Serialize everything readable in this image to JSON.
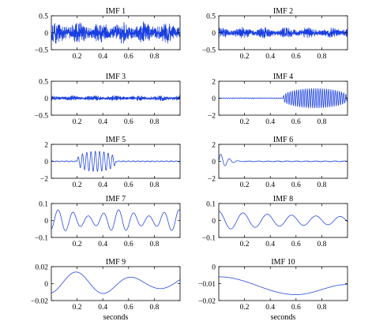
{
  "chart_data": [
    {
      "type": "line",
      "title": "IMF 1",
      "xlabel": "",
      "xlim": [
        0,
        1
      ],
      "ylim": [
        -0.5,
        0.5
      ],
      "yticks": [
        "0.5",
        "0",
        "−0.5"
      ],
      "xticks": [
        "0.2",
        "0.4",
        "0.6",
        "0.8"
      ],
      "series": [
        {
          "kind": "noise",
          "amplitude": 0.28,
          "frequency_hz": 190,
          "start": 0,
          "end": 1
        }
      ],
      "color": "#1a3fe0"
    },
    {
      "type": "line",
      "title": "IMF 2",
      "xlabel": "",
      "xlim": [
        0,
        1
      ],
      "ylim": [
        -0.5,
        0.5
      ],
      "yticks": [
        "0.5",
        "0",
        "−0.5"
      ],
      "xticks": [
        "0.2",
        "0.4",
        "0.6",
        "0.8"
      ],
      "series": [
        {
          "kind": "noise",
          "amplitude": 0.14,
          "frequency_hz": 150,
          "start": 0,
          "end": 1
        }
      ],
      "color": "#1a3fe0"
    },
    {
      "type": "line",
      "title": "IMF 3",
      "xlabel": "",
      "xlim": [
        0,
        1
      ],
      "ylim": [
        -0.5,
        0.5
      ],
      "yticks": [
        "0.5",
        "0",
        "−0.5"
      ],
      "xticks": [
        "0.2",
        "0.4",
        "0.6",
        "0.8"
      ],
      "series": [
        {
          "kind": "noise",
          "amplitude": 0.07,
          "frequency_hz": 110,
          "start": 0,
          "end": 1
        }
      ],
      "color": "#1a3fe0"
    },
    {
      "type": "line",
      "title": "IMF 4",
      "xlabel": "",
      "xlim": [
        0,
        1
      ],
      "ylim": [
        -2,
        2
      ],
      "yticks": [
        "2",
        "0",
        "−2"
      ],
      "xticks": [
        "0.2",
        "0.4",
        "0.6",
        "0.8"
      ],
      "series": [
        {
          "kind": "burst",
          "amplitude": 1.15,
          "frequency_hz": 60,
          "start": 0.5,
          "end": 1.0,
          "residual": 0.06
        }
      ],
      "color": "#1a3fe0"
    },
    {
      "type": "line",
      "title": "IMF 5",
      "xlabel": "",
      "xlim": [
        0,
        1
      ],
      "ylim": [
        -2,
        2
      ],
      "yticks": [
        "2",
        "0",
        "−2"
      ],
      "xticks": [
        "0.2",
        "0.4",
        "0.6",
        "0.8"
      ],
      "series": [
        {
          "kind": "burst",
          "amplitude": 1.2,
          "frequency_hz": 30,
          "start": 0.2,
          "end": 0.5,
          "residual": 0.06
        }
      ],
      "color": "#1a3fe0"
    },
    {
      "type": "line",
      "title": "IMF 6",
      "xlabel": "",
      "xlim": [
        0,
        1
      ],
      "ylim": [
        -2,
        2
      ],
      "yticks": [
        "2",
        "0",
        "−2"
      ],
      "xticks": [
        "0.2",
        "0.4",
        "0.6",
        "0.8"
      ],
      "series": [
        {
          "kind": "burst",
          "amplitude": 1.0,
          "frequency_hz": 15,
          "start": 0.0,
          "end": 0.2,
          "residual": 0.05
        }
      ],
      "color": "#1a3fe0"
    },
    {
      "type": "line",
      "title": "IMF 7",
      "xlabel": "",
      "xlim": [
        0,
        1
      ],
      "ylim": [
        -0.1,
        0.1
      ],
      "yticks": [
        "0.1",
        "0",
        "−0.1"
      ],
      "xticks": [
        "0.2",
        "0.4",
        "0.6",
        "0.8"
      ],
      "series": [
        {
          "kind": "wave",
          "amplitude": 0.06,
          "frequency_hz": 8.5,
          "modulation_hz": 2.2,
          "start": 0,
          "end": 1
        }
      ],
      "color": "#1a3fe0"
    },
    {
      "type": "line",
      "title": "IMF 8",
      "xlabel": "",
      "xlim": [
        0,
        1
      ],
      "ylim": [
        -0.1,
        0.1
      ],
      "yticks": [
        "0.1",
        "0",
        "−0.1"
      ],
      "xticks": [
        "0.2",
        "0.4",
        "0.6",
        "0.8"
      ],
      "series": [
        {
          "kind": "decay",
          "amplitude": 0.055,
          "frequency_hz": 5.3,
          "decay": 1.6,
          "floor": 0.015,
          "start": 0,
          "end": 1
        }
      ],
      "color": "#1a3fe0"
    },
    {
      "type": "line",
      "title": "IMF 9",
      "xlabel": "seconds",
      "xlim": [
        0,
        1
      ],
      "ylim": [
        -0.02,
        0.02
      ],
      "yticks": [
        "0.02",
        "0",
        "−0.02"
      ],
      "xticks": [
        "0.2",
        "0.4",
        "0.6",
        "0.8"
      ],
      "series": [
        {
          "kind": "wave",
          "amplitude": 0.013,
          "frequency_hz": 2.3,
          "modulation_hz": 0.8,
          "start": 0,
          "end": 1
        }
      ],
      "color": "#1a3fe0"
    },
    {
      "type": "line",
      "title": "IMF 10",
      "xlabel": "seconds",
      "xlim": [
        0,
        1
      ],
      "ylim": [
        -0.02,
        0
      ],
      "yticks": [
        "0",
        "−0.01",
        "−0.02"
      ],
      "xticks": [
        "0.2",
        "0.4",
        "0.6",
        "0.8"
      ],
      "series": [
        {
          "kind": "trend",
          "start_value": -0.006,
          "min_value": -0.0165,
          "min_at": 0.6,
          "end_value": -0.0105
        }
      ],
      "color": "#1a3fe0"
    }
  ]
}
